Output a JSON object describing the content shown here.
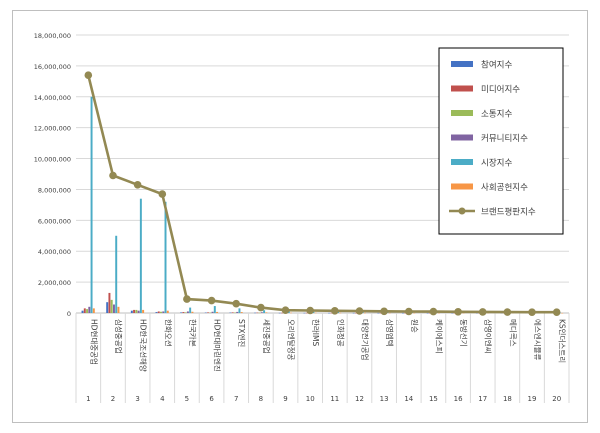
{
  "chart_data": {
    "type": "bar",
    "categories": [
      {
        "num": "1",
        "name": "HD현대중공업"
      },
      {
        "num": "2",
        "name": "삼성중공업"
      },
      {
        "num": "3",
        "name": "HD한국조선해양"
      },
      {
        "num": "4",
        "name": "한화오션"
      },
      {
        "num": "5",
        "name": "한국카본"
      },
      {
        "num": "6",
        "name": "HD현대마린엔진"
      },
      {
        "num": "7",
        "name": "STX엔진"
      },
      {
        "num": "8",
        "name": "세진중공업"
      },
      {
        "num": "9",
        "name": "오리엔탈정공"
      },
      {
        "num": "10",
        "name": "한라IMS"
      },
      {
        "num": "11",
        "name": "인화정공"
      },
      {
        "num": "12",
        "name": "대양전기공업"
      },
      {
        "num": "13",
        "name": "삼영엠텍"
      },
      {
        "num": "14",
        "name": "원승"
      },
      {
        "num": "15",
        "name": "케이에스피"
      },
      {
        "num": "16",
        "name": "동방선기"
      },
      {
        "num": "17",
        "name": "삼영이엔씨"
      },
      {
        "num": "18",
        "name": "메디콕스"
      },
      {
        "num": "19",
        "name": "에스엔시뮬류"
      },
      {
        "num": "20",
        "name": "KS인더스트리"
      }
    ],
    "series": [
      {
        "name": "참여지수",
        "color": "#4472c4",
        "values": [
          150000,
          700000,
          150000,
          60000,
          40000,
          30000,
          30000,
          20000,
          10000,
          10000,
          8000,
          8000,
          6000,
          6000,
          5000,
          5000,
          4000,
          4000,
          3000,
          3000
        ]
      },
      {
        "name": "미디어지수",
        "color": "#c0504d",
        "values": [
          300000,
          1300000,
          200000,
          100000,
          60000,
          40000,
          40000,
          25000,
          12000,
          12000,
          10000,
          10000,
          8000,
          8000,
          6000,
          6000,
          5000,
          5000,
          4000,
          4000
        ]
      },
      {
        "name": "소통지수",
        "color": "#9bbb59",
        "values": [
          250000,
          850000,
          200000,
          80000,
          40000,
          30000,
          30000,
          20000,
          10000,
          10000,
          8000,
          8000,
          6000,
          6000,
          5000,
          5000,
          4000,
          4000,
          3000,
          3000
        ]
      },
      {
        "name": "커뮤니티지수",
        "color": "#8064a2",
        "values": [
          400000,
          550000,
          150000,
          100000,
          100000,
          80000,
          70000,
          50000,
          20000,
          20000,
          15000,
          15000,
          10000,
          10000,
          8000,
          8000,
          6000,
          6000,
          5000,
          5000
        ]
      },
      {
        "name": "시장지수",
        "color": "#4bacc6",
        "values": [
          14000000,
          5000000,
          7400000,
          7200000,
          350000,
          450000,
          300000,
          180000,
          100000,
          80000,
          70000,
          60000,
          50000,
          40000,
          40000,
          30000,
          30000,
          20000,
          20000,
          20000
        ]
      },
      {
        "name": "사회공헌지수",
        "color": "#f79646",
        "values": [
          300000,
          400000,
          200000,
          150000,
          80000,
          70000,
          60000,
          40000,
          20000,
          20000,
          15000,
          15000,
          10000,
          10000,
          8000,
          8000,
          6000,
          6000,
          5000,
          5000
        ]
      }
    ],
    "line": {
      "name": "브랜드평판지수",
      "color": "#938953",
      "values": [
        15400000,
        8900000,
        8300000,
        7700000,
        900000,
        800000,
        600000,
        350000,
        180000,
        160000,
        140000,
        130000,
        110000,
        100000,
        90000,
        80000,
        70000,
        60000,
        55000,
        50000
      ]
    },
    "yticks": [
      "0",
      "2,000,000",
      "4,000,000",
      "6,000,000",
      "8,000,000",
      "10,000,000",
      "12,000,000",
      "14,000,000",
      "16,000,000",
      "18,000,000"
    ],
    "ylim": [
      0,
      18000000
    ],
    "legend_position": "right"
  }
}
